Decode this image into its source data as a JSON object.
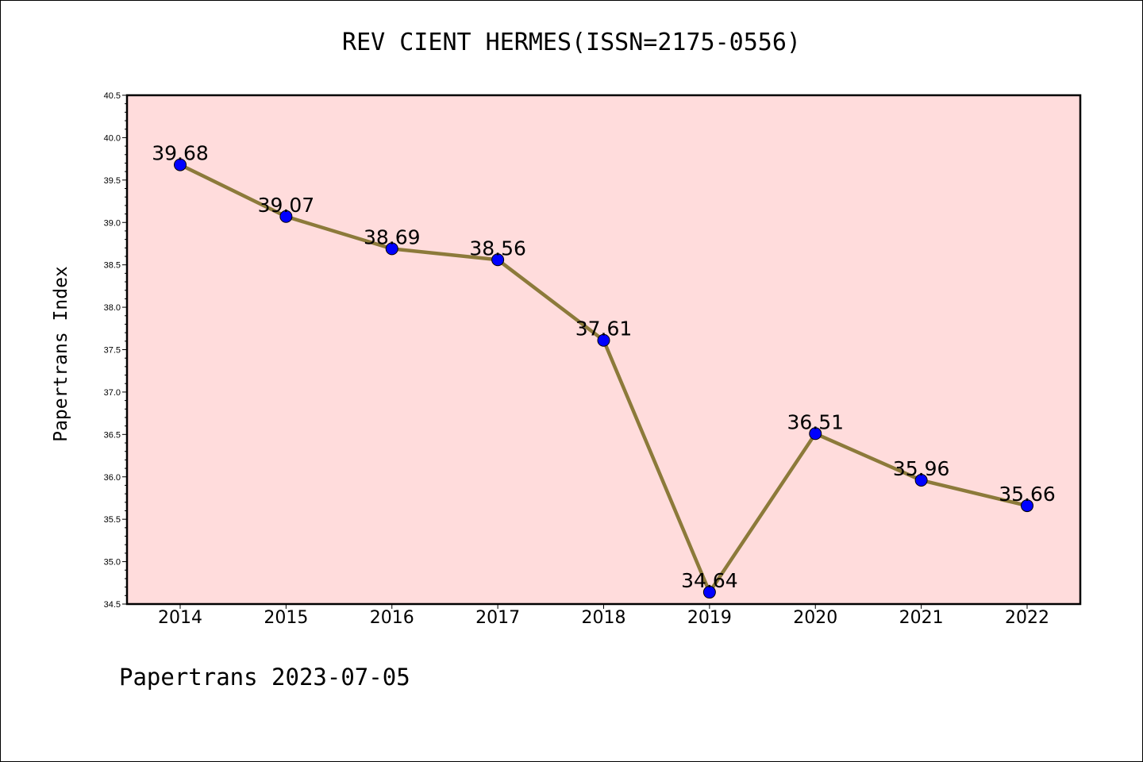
{
  "chart_data": {
    "type": "line",
    "title": "REV CIENT HERMES(ISSN=2175-0556)",
    "xlabel": "",
    "ylabel": "Papertrans Index",
    "categories": [
      "2014",
      "2015",
      "2016",
      "2017",
      "2018",
      "2019",
      "2020",
      "2021",
      "2022"
    ],
    "series": [
      {
        "values": [
          39.68,
          39.07,
          38.69,
          38.56,
          37.61,
          34.64,
          36.51,
          35.96,
          35.66
        ],
        "labels": [
          "39.68",
          "39.07",
          "38.69",
          "38.56",
          "37.61",
          "34.64",
          "36.51",
          "35.96",
          "35.66"
        ],
        "line_color": "#8c7a3a",
        "marker_color": "#0000ff"
      }
    ],
    "ylim": [
      34.5,
      40.5
    ],
    "yticks": [
      "34.5",
      "35.0",
      "35.5",
      "36.0",
      "36.5",
      "37.0",
      "37.5",
      "38.0",
      "38.5",
      "39.0",
      "39.5",
      "40.0",
      "40.5"
    ],
    "plot_background": "#ffdcdc",
    "grid": false,
    "legend": "none"
  },
  "footer": "Papertrans 2023-07-05"
}
